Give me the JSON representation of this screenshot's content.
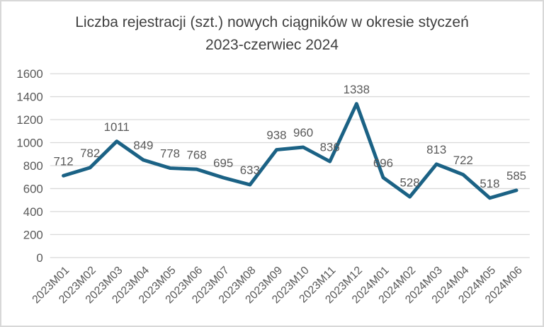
{
  "chart_data": {
    "type": "line",
    "title": "Liczba rejestracji (szt.) nowych ciągników w okresie styczeń 2023-czerwiec 2024",
    "title_lines": [
      "Liczba rejestracji (szt.) nowych ciągników w okresie styczeń",
      "2023-czerwiec 2024"
    ],
    "categories": [
      "2023M01",
      "2023M02",
      "2023M03",
      "2023M04",
      "2023M05",
      "2023M06",
      "2023M07",
      "2023M08",
      "2023M09",
      "2023M10",
      "2023M11",
      "2023M12",
      "2024M01",
      "2024M02",
      "2024M03",
      "2024M04",
      "2024M05",
      "2024M06"
    ],
    "values": [
      712,
      782,
      1011,
      849,
      778,
      768,
      695,
      633,
      938,
      960,
      836,
      1338,
      696,
      528,
      813,
      722,
      518,
      585
    ],
    "data_labels_shown": true,
    "xlabel": "",
    "ylabel": "",
    "ylim": [
      0,
      1600
    ],
    "yticks": [
      0,
      200,
      400,
      600,
      800,
      1000,
      1200,
      1400,
      1600
    ],
    "grid": true,
    "legend": "none",
    "colors": {
      "line": "#1b6285",
      "tick_labels": "#595959",
      "data_labels": "#595959",
      "title": "#3f3f3f",
      "gridline": "#d9d9d9",
      "axis_line": "#d9d9d9",
      "page_border": "#d8d8d8",
      "background": "#ffffff"
    }
  }
}
